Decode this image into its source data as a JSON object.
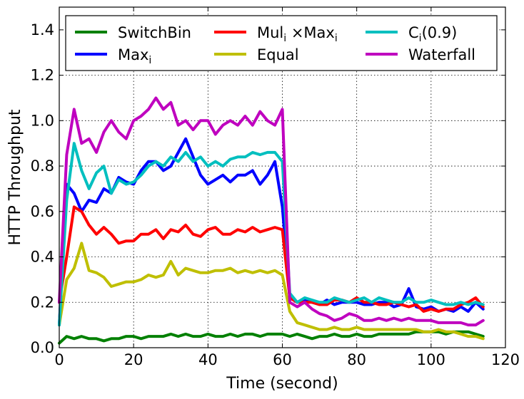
{
  "chart_data": {
    "type": "line",
    "xlabel": "Time (second)",
    "ylabel": "HTTP Throughput",
    "xlim": [
      0,
      120
    ],
    "ylim": [
      0,
      1.5
    ],
    "xticks": [
      "0",
      "20",
      "40",
      "60",
      "80",
      "100",
      "120"
    ],
    "yticks": [
      "0.0",
      "0.2",
      "0.4",
      "0.6",
      "0.8",
      "1.0",
      "1.2",
      "1.4"
    ],
    "grid": true,
    "legend_position": "top",
    "series": [
      {
        "name": "SwitchBin",
        "label_parts": [
          "SwitchBin"
        ],
        "color": "#008000",
        "x": [
          0,
          2,
          4,
          6,
          8,
          10,
          12,
          14,
          16,
          18,
          20,
          22,
          24,
          26,
          28,
          30,
          32,
          34,
          36,
          38,
          40,
          42,
          44,
          46,
          48,
          50,
          52,
          54,
          56,
          58,
          60,
          62,
          64,
          66,
          68,
          70,
          72,
          74,
          76,
          78,
          80,
          82,
          84,
          86,
          88,
          90,
          92,
          94,
          96,
          98,
          100,
          102,
          104,
          106,
          108,
          110,
          112,
          114
        ],
        "y": [
          0.02,
          0.05,
          0.04,
          0.05,
          0.04,
          0.04,
          0.03,
          0.04,
          0.04,
          0.05,
          0.05,
          0.04,
          0.05,
          0.05,
          0.05,
          0.06,
          0.05,
          0.06,
          0.05,
          0.05,
          0.06,
          0.05,
          0.05,
          0.06,
          0.05,
          0.06,
          0.06,
          0.05,
          0.06,
          0.06,
          0.06,
          0.05,
          0.06,
          0.05,
          0.04,
          0.05,
          0.05,
          0.06,
          0.05,
          0.05,
          0.06,
          0.05,
          0.05,
          0.06,
          0.06,
          0.06,
          0.06,
          0.06,
          0.07,
          0.07,
          0.07,
          0.07,
          0.06,
          0.07,
          0.07,
          0.07,
          0.06,
          0.05
        ]
      },
      {
        "name": "Maxi",
        "label_parts": [
          "Max",
          "i"
        ],
        "color": "#0000ff",
        "x": [
          0,
          2,
          4,
          6,
          8,
          10,
          12,
          14,
          16,
          18,
          20,
          22,
          24,
          26,
          28,
          30,
          32,
          34,
          36,
          38,
          40,
          42,
          44,
          46,
          48,
          50,
          52,
          54,
          56,
          58,
          60,
          62,
          64,
          66,
          68,
          70,
          72,
          74,
          76,
          78,
          80,
          82,
          84,
          86,
          88,
          90,
          92,
          94,
          96,
          98,
          100,
          102,
          104,
          106,
          108,
          110,
          112,
          114
        ],
        "y": [
          0.1,
          0.72,
          0.68,
          0.6,
          0.65,
          0.64,
          0.7,
          0.68,
          0.75,
          0.73,
          0.72,
          0.78,
          0.82,
          0.82,
          0.78,
          0.8,
          0.86,
          0.92,
          0.84,
          0.76,
          0.72,
          0.74,
          0.76,
          0.73,
          0.76,
          0.76,
          0.78,
          0.72,
          0.76,
          0.82,
          0.62,
          0.22,
          0.2,
          0.21,
          0.2,
          0.19,
          0.21,
          0.19,
          0.2,
          0.2,
          0.2,
          0.19,
          0.19,
          0.2,
          0.2,
          0.18,
          0.19,
          0.26,
          0.18,
          0.17,
          0.18,
          0.16,
          0.17,
          0.16,
          0.18,
          0.16,
          0.2,
          0.17
        ]
      },
      {
        "name": "Muli ×Maxi",
        "label_parts": [
          "Mul",
          "i",
          " ×Max",
          "i"
        ],
        "color": "#ff0000",
        "x": [
          0,
          2,
          4,
          6,
          8,
          10,
          12,
          14,
          16,
          18,
          20,
          22,
          24,
          26,
          28,
          30,
          32,
          34,
          36,
          38,
          40,
          42,
          44,
          46,
          48,
          50,
          52,
          54,
          56,
          58,
          60,
          62,
          64,
          66,
          68,
          70,
          72,
          74,
          76,
          78,
          80,
          82,
          84,
          86,
          88,
          90,
          92,
          94,
          96,
          98,
          100,
          102,
          104,
          106,
          108,
          110,
          112,
          114
        ],
        "y": [
          0.2,
          0.4,
          0.62,
          0.6,
          0.54,
          0.5,
          0.53,
          0.5,
          0.46,
          0.47,
          0.47,
          0.5,
          0.5,
          0.52,
          0.48,
          0.52,
          0.51,
          0.54,
          0.5,
          0.49,
          0.52,
          0.53,
          0.5,
          0.5,
          0.52,
          0.51,
          0.53,
          0.51,
          0.52,
          0.53,
          0.52,
          0.22,
          0.2,
          0.2,
          0.2,
          0.19,
          0.19,
          0.21,
          0.21,
          0.2,
          0.22,
          0.2,
          0.2,
          0.19,
          0.19,
          0.2,
          0.19,
          0.18,
          0.19,
          0.16,
          0.17,
          0.16,
          0.17,
          0.17,
          0.19,
          0.2,
          0.22,
          0.18
        ]
      },
      {
        "name": "Equal",
        "label_parts": [
          "Equal"
        ],
        "color": "#bfbf00",
        "x": [
          0,
          2,
          4,
          6,
          8,
          10,
          12,
          14,
          16,
          18,
          20,
          22,
          24,
          26,
          28,
          30,
          32,
          34,
          36,
          38,
          40,
          42,
          44,
          46,
          48,
          50,
          52,
          54,
          56,
          58,
          60,
          62,
          64,
          66,
          68,
          70,
          72,
          74,
          76,
          78,
          80,
          82,
          84,
          86,
          88,
          90,
          92,
          94,
          96,
          98,
          100,
          102,
          104,
          106,
          108,
          110,
          112,
          114
        ],
        "y": [
          0.1,
          0.3,
          0.35,
          0.46,
          0.34,
          0.33,
          0.31,
          0.27,
          0.28,
          0.29,
          0.29,
          0.3,
          0.32,
          0.31,
          0.32,
          0.38,
          0.32,
          0.35,
          0.34,
          0.33,
          0.33,
          0.34,
          0.34,
          0.35,
          0.33,
          0.34,
          0.33,
          0.34,
          0.33,
          0.34,
          0.32,
          0.16,
          0.11,
          0.1,
          0.09,
          0.08,
          0.08,
          0.09,
          0.08,
          0.08,
          0.09,
          0.08,
          0.08,
          0.08,
          0.08,
          0.08,
          0.08,
          0.08,
          0.08,
          0.07,
          0.07,
          0.08,
          0.07,
          0.07,
          0.06,
          0.05,
          0.05,
          0.04
        ]
      },
      {
        "name": "Ci(0.9)",
        "label_parts": [
          "C",
          "i",
          "(0.9)"
        ],
        "color": "#00bfbf",
        "x": [
          0,
          2,
          4,
          6,
          8,
          10,
          12,
          14,
          16,
          18,
          20,
          22,
          24,
          26,
          28,
          30,
          32,
          34,
          36,
          38,
          40,
          42,
          44,
          46,
          48,
          50,
          52,
          54,
          56,
          58,
          60,
          62,
          64,
          66,
          68,
          70,
          72,
          74,
          76,
          78,
          80,
          82,
          84,
          86,
          88,
          90,
          92,
          94,
          96,
          98,
          100,
          102,
          104,
          106,
          108,
          110,
          112,
          114
        ],
        "y": [
          0.1,
          0.65,
          0.9,
          0.78,
          0.7,
          0.77,
          0.8,
          0.68,
          0.74,
          0.72,
          0.73,
          0.76,
          0.8,
          0.82,
          0.8,
          0.84,
          0.82,
          0.86,
          0.82,
          0.84,
          0.8,
          0.82,
          0.8,
          0.83,
          0.84,
          0.84,
          0.86,
          0.85,
          0.86,
          0.86,
          0.82,
          0.24,
          0.2,
          0.22,
          0.21,
          0.2,
          0.2,
          0.22,
          0.21,
          0.2,
          0.21,
          0.22,
          0.2,
          0.22,
          0.21,
          0.2,
          0.2,
          0.22,
          0.2,
          0.2,
          0.21,
          0.2,
          0.19,
          0.19,
          0.2,
          0.19,
          0.2,
          0.19
        ]
      },
      {
        "name": "Waterfall",
        "label_parts": [
          "Waterfall"
        ],
        "color": "#bf00bf",
        "x": [
          0,
          2,
          4,
          6,
          8,
          10,
          12,
          14,
          16,
          18,
          20,
          22,
          24,
          26,
          28,
          30,
          32,
          34,
          36,
          38,
          40,
          42,
          44,
          46,
          48,
          50,
          52,
          54,
          56,
          58,
          60,
          62,
          64,
          66,
          68,
          70,
          72,
          74,
          76,
          78,
          80,
          82,
          84,
          86,
          88,
          90,
          92,
          94,
          96,
          98,
          100,
          102,
          104,
          106,
          108,
          110,
          112,
          114
        ],
        "y": [
          0.2,
          0.85,
          1.05,
          0.9,
          0.92,
          0.86,
          0.95,
          1.0,
          0.95,
          0.92,
          1.0,
          1.02,
          1.05,
          1.1,
          1.05,
          1.08,
          0.98,
          1.0,
          0.96,
          1.0,
          1.0,
          0.94,
          0.98,
          1.0,
          0.98,
          1.02,
          0.98,
          1.04,
          1.0,
          0.98,
          1.05,
          0.2,
          0.18,
          0.2,
          0.17,
          0.15,
          0.14,
          0.12,
          0.13,
          0.15,
          0.14,
          0.12,
          0.12,
          0.13,
          0.12,
          0.13,
          0.12,
          0.13,
          0.12,
          0.12,
          0.12,
          0.11,
          0.11,
          0.11,
          0.11,
          0.1,
          0.1,
          0.12
        ]
      }
    ]
  }
}
